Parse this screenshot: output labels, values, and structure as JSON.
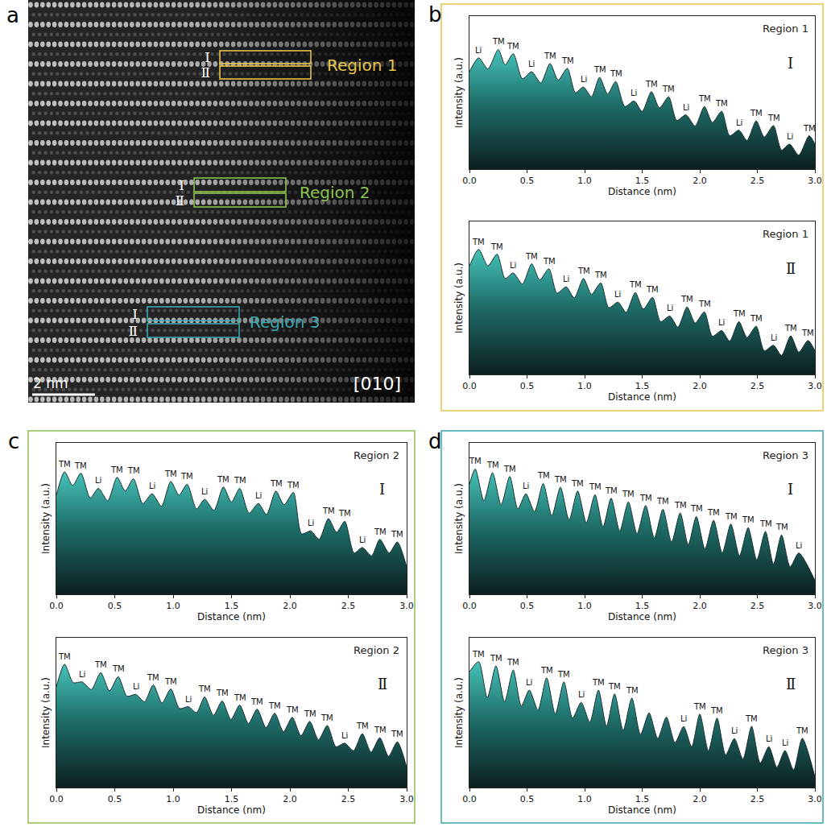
{
  "image_panel": {
    "letter": "a",
    "scale_bar": "2 nm",
    "zone_axis": "[010]",
    "regions": [
      {
        "name": "Region 1",
        "color": "#e6c34a",
        "rows": [
          "Ⅰ",
          "Ⅱ"
        ]
      },
      {
        "name": "Region 2",
        "color": "#8cc152",
        "rows": [
          "Ⅰ",
          "Ⅱ"
        ]
      },
      {
        "name": "Region 3",
        "color": "#3aa6b0",
        "rows": [
          "Ⅰ",
          "Ⅱ"
        ]
      }
    ]
  },
  "chart_data": [
    {
      "type": "area",
      "panel": "b",
      "title": "Region 1",
      "subtitle": "Ⅰ",
      "color": "#e6c34a",
      "xlabel": "Distance (nm)",
      "ylabel": "Intensity (a.u.)",
      "xlim": [
        0,
        3
      ],
      "ylim": [
        0,
        110
      ],
      "xticks": [
        {
          "value": 0,
          "label": "0.0"
        },
        0.5,
        {
          "value": 1,
          "label": "1.0"
        },
        1.5,
        {
          "value": 2,
          "label": "2.0"
        },
        2.5,
        {
          "value": 3,
          "label": "3.0"
        }
      ],
      "tick_labels": "x",
      "grid": false,
      "x": [
        0,
        0.08,
        0.16,
        0.25,
        0.31,
        0.38,
        0.46,
        0.54,
        0.62,
        0.7,
        0.77,
        0.85,
        0.92,
        0.99,
        1.06,
        1.13,
        1.2,
        1.27,
        1.35,
        1.43,
        1.5,
        1.58,
        1.65,
        1.73,
        1.8,
        1.88,
        1.96,
        2.04,
        2.11,
        2.19,
        2.26,
        2.34,
        2.41,
        2.49,
        2.56,
        2.64,
        2.71,
        2.78,
        2.86,
        2.95,
        3.0
      ],
      "values": [
        70,
        80,
        72,
        86,
        75,
        83,
        65,
        70,
        62,
        76,
        64,
        72.5,
        55,
        59,
        52,
        66,
        54,
        63,
        45,
        49,
        41.5,
        55.7,
        44,
        52,
        35,
        39,
        31,
        45,
        33.5,
        41.6,
        24,
        28,
        20.6,
        34.7,
        23,
        31.3,
        13.7,
        18,
        10,
        24,
        18
      ],
      "point_labels": [
        null,
        "Li",
        null,
        "TM",
        null,
        "TM",
        null,
        "Li",
        null,
        "TM",
        null,
        "TM",
        null,
        "Li",
        null,
        "TM",
        null,
        "TM",
        null,
        "Li",
        null,
        "TM",
        null,
        "TM",
        null,
        "Li",
        null,
        "TM",
        null,
        "TM",
        null,
        "Li",
        null,
        "TM",
        null,
        "TM",
        null,
        "Li",
        null,
        "TM",
        null
      ]
    },
    {
      "type": "area",
      "panel": "b",
      "title": "Region 1",
      "subtitle": "Ⅱ",
      "color": "#e6c34a",
      "xlabel": "Distance (nm)",
      "ylabel": "Intensity (a.u.)",
      "xlim": [
        0,
        3
      ],
      "ylim": [
        0,
        110
      ],
      "xticks": [
        {
          "value": 0,
          "label": "0.0"
        },
        0.5,
        {
          "value": 1,
          "label": "1.0"
        },
        1.5,
        {
          "value": 2,
          "label": "2.0"
        },
        2.5,
        {
          "value": 3,
          "label": "3.0"
        }
      ],
      "tick_labels": "x",
      "grid": false,
      "x": [
        0,
        0.08,
        0.16,
        0.24,
        0.31,
        0.38,
        0.46,
        0.54,
        0.61,
        0.69,
        0.76,
        0.84,
        0.91,
        0.99,
        1.06,
        1.14,
        1.21,
        1.29,
        1.36,
        1.44,
        1.51,
        1.59,
        1.66,
        1.74,
        1.81,
        1.89,
        1.96,
        2.04,
        2.11,
        2.19,
        2.26,
        2.34,
        2.41,
        2.49,
        2.56,
        2.64,
        2.71,
        2.79,
        2.86,
        2.94,
        3.0
      ],
      "values": [
        78,
        90,
        78,
        86.5,
        69,
        73,
        65,
        79.6,
        68,
        76,
        58.5,
        63,
        55,
        69,
        57.6,
        65.8,
        48,
        52,
        44.7,
        58.9,
        47,
        55.4,
        38,
        42,
        34,
        48.5,
        37,
        45,
        27.5,
        31.6,
        24,
        38,
        26.6,
        34.7,
        17,
        21,
        13.7,
        27.8,
        16,
        24.4,
        17
      ],
      "point_labels": [
        null,
        "TM",
        null,
        "TM",
        null,
        "Li",
        null,
        "TM",
        null,
        "TM",
        null,
        "Li",
        null,
        "TM",
        null,
        "TM",
        null,
        "Li",
        null,
        "TM",
        null,
        "TM",
        null,
        "Li",
        null,
        "TM",
        null,
        "TM",
        null,
        "Li",
        null,
        "TM",
        null,
        "TM",
        null,
        "Li",
        null,
        "TM",
        null,
        "TM",
        null
      ]
    },
    {
      "type": "area",
      "panel": "c",
      "title": "Region 2",
      "subtitle": "Ⅰ",
      "color": "#8cc152",
      "xlabel": "Distance (nm)",
      "ylabel": "Intensity (a.u.)",
      "xlim": [
        0,
        3
      ],
      "ylim": [
        0,
        110
      ],
      "xticks": [
        {
          "value": 0,
          "label": "0.0"
        },
        0.5,
        {
          "value": 1,
          "label": "1.0"
        },
        1.5,
        {
          "value": 2,
          "label": "2.0"
        },
        2.5,
        {
          "value": 3,
          "label": "3.0"
        }
      ],
      "tick_labels": "x",
      "grid": false,
      "x": [
        0,
        0.07,
        0.14,
        0.21,
        0.29,
        0.36,
        0.44,
        0.52,
        0.59,
        0.66,
        0.74,
        0.82,
        0.9,
        0.98,
        1.05,
        1.12,
        1.2,
        1.27,
        1.35,
        1.43,
        1.5,
        1.57,
        1.65,
        1.73,
        1.8,
        1.88,
        1.95,
        2.03,
        2.1,
        2.18,
        2.25,
        2.33,
        2.4,
        2.47,
        2.55,
        2.62,
        2.7,
        2.77,
        2.85,
        2.92,
        3.0
      ],
      "values": [
        72,
        89,
        79,
        88,
        70,
        77,
        68,
        85,
        75,
        84,
        66,
        73,
        64,
        82,
        72,
        80,
        62,
        69,
        61,
        78,
        67,
        77,
        59,
        66,
        58,
        75,
        65,
        74,
        44,
        46,
        40,
        55,
        45,
        53,
        30,
        34,
        28,
        40,
        30,
        38,
        20
      ],
      "point_labels": [
        null,
        "TM",
        null,
        "TM",
        null,
        "Li",
        null,
        "TM",
        null,
        "TM",
        null,
        "Li",
        null,
        "TM",
        null,
        "TM",
        null,
        "Li",
        null,
        "TM",
        null,
        "TM",
        null,
        "Li",
        null,
        "TM",
        null,
        "TM",
        null,
        "Li",
        null,
        "TM",
        null,
        "TM",
        null,
        "Li",
        null,
        "TM",
        null,
        "TM",
        null
      ]
    },
    {
      "type": "area",
      "panel": "c",
      "title": "Region 2",
      "subtitle": "Ⅱ",
      "color": "#8cc152",
      "xlabel": "Distance (nm)",
      "ylabel": "Intensity (a.u.)",
      "xlim": [
        0,
        3
      ],
      "ylim": [
        0,
        110
      ],
      "xticks": [
        {
          "value": 0,
          "label": "0.0"
        },
        0.5,
        {
          "value": 1,
          "label": "1.0"
        },
        1.5,
        {
          "value": 2,
          "label": "2.0"
        },
        2.5,
        {
          "value": 3,
          "label": "3.0"
        }
      ],
      "tick_labels": "x",
      "grid": false,
      "x": [
        0,
        0.07,
        0.145,
        0.22,
        0.3,
        0.38,
        0.455,
        0.53,
        0.605,
        0.68,
        0.755,
        0.83,
        0.905,
        0.98,
        1.055,
        1.13,
        1.2,
        1.27,
        1.345,
        1.42,
        1.495,
        1.57,
        1.645,
        1.72,
        1.795,
        1.87,
        1.945,
        2.02,
        2.095,
        2.17,
        2.245,
        2.32,
        2.395,
        2.47,
        2.545,
        2.62,
        2.695,
        2.77,
        2.845,
        2.92,
        3.0
      ],
      "values": [
        74,
        90.6,
        77,
        77.6,
        72,
        84.4,
        71,
        81.4,
        67,
        68.4,
        63,
        75.4,
        62,
        72.4,
        58,
        59.4,
        55,
        66.6,
        53,
        63.6,
        50,
        60.6,
        47,
        57.6,
        44,
        54.6,
        41,
        51.6,
        38,
        48.6,
        35,
        45.6,
        30,
        32.6,
        27,
        39.6,
        26,
        36.6,
        23,
        33.6,
        15
      ],
      "point_labels": [
        null,
        "TM",
        null,
        "Li",
        null,
        "TM",
        null,
        "TM",
        null,
        "Li",
        null,
        "TM",
        null,
        "TM",
        null,
        "Li",
        null,
        "TM",
        null,
        "TM",
        null,
        "TM",
        null,
        "TM",
        null,
        "TM",
        null,
        "TM",
        null,
        "TM",
        null,
        "TM",
        null,
        "Li",
        null,
        "TM",
        null,
        "TM",
        null,
        "TM",
        null
      ]
    },
    {
      "type": "area",
      "panel": "d",
      "title": "Region 3",
      "subtitle": "Ⅰ",
      "color": "#3aa6b0",
      "xlabel": "Distance (nm)",
      "ylabel": "Intensity (a.u.)",
      "xlim": [
        0,
        3
      ],
      "ylim": [
        0,
        110
      ],
      "xticks": [
        {
          "value": 0,
          "label": "0.0"
        },
        0.5,
        {
          "value": 1,
          "label": "1.0"
        },
        1.5,
        {
          "value": 2,
          "label": "2.0"
        },
        2.5,
        {
          "value": 3,
          "label": "3.0"
        }
      ],
      "tick_labels": "x",
      "grid": false,
      "x": [
        0,
        0.05,
        0.125,
        0.2,
        0.275,
        0.35,
        0.42,
        0.49,
        0.565,
        0.64,
        0.715,
        0.79,
        0.865,
        0.94,
        1.015,
        1.09,
        1.16,
        1.23,
        1.305,
        1.38,
        1.455,
        1.53,
        1.605,
        1.68,
        1.755,
        1.83,
        1.9,
        1.97,
        2.045,
        2.12,
        2.195,
        2.27,
        2.345,
        2.42,
        2.495,
        2.57,
        2.64,
        2.71,
        2.785,
        2.86,
        3.0
      ],
      "values": [
        80,
        91.1,
        68,
        88.4,
        65,
        85.7,
        62,
        73,
        60,
        80.5,
        57,
        77.8,
        54,
        75.1,
        52,
        72.4,
        49,
        69.9,
        46,
        67.2,
        44,
        64.5,
        41,
        61.8,
        38,
        59.1,
        36,
        56.5,
        33,
        53.8,
        30,
        51.1,
        28,
        48.4,
        25,
        45.7,
        22,
        43.2,
        20,
        30,
        10
      ],
      "point_labels": [
        null,
        "TM",
        null,
        "TM",
        null,
        "TM",
        null,
        "Li",
        null,
        "TM",
        null,
        "TM",
        null,
        "TM",
        null,
        "TM",
        null,
        "TM",
        null,
        "TM",
        null,
        "TM",
        null,
        "TM",
        null,
        "TM",
        null,
        "TM",
        null,
        "TM",
        null,
        "TM",
        null,
        "TM",
        null,
        "TM",
        null,
        "TM",
        null,
        "Li",
        null
      ]
    },
    {
      "type": "area",
      "panel": "d",
      "title": "Region 3",
      "subtitle": "Ⅱ",
      "color": "#3aa6b0",
      "xlabel": "Distance (nm)",
      "ylabel": "Intensity (a.u.)",
      "xlim": [
        0,
        3
      ],
      "ylim": [
        0,
        110
      ],
      "xticks": [
        {
          "value": 0,
          "label": "0.0"
        },
        0.5,
        {
          "value": 1,
          "label": "1.0"
        },
        1.5,
        {
          "value": 2,
          "label": "2.0"
        },
        2.5,
        {
          "value": 3,
          "label": "3.0"
        }
      ],
      "tick_labels": "x",
      "grid": false,
      "x": [
        0,
        0.08,
        0.155,
        0.23,
        0.305,
        0.38,
        0.45,
        0.52,
        0.595,
        0.67,
        0.745,
        0.82,
        0.895,
        0.97,
        1.045,
        1.12,
        1.19,
        1.26,
        1.335,
        1.41,
        1.485,
        1.56,
        1.635,
        1.71,
        1.785,
        1.86,
        1.93,
        2.0,
        2.075,
        2.15,
        2.225,
        2.3,
        2.375,
        2.45,
        2.525,
        2.6,
        2.67,
        2.74,
        2.815,
        2.89,
        3.0
      ],
      "values": [
        85,
        92.4,
        66,
        89.4,
        63,
        86.4,
        60,
        71.6,
        57,
        80.6,
        54,
        77.6,
        51,
        62.6,
        48,
        71.6,
        45,
        68.8,
        42,
        65.8,
        39,
        54.8,
        36,
        51.8,
        33,
        44.8,
        30,
        54,
        27,
        51,
        24,
        36,
        21,
        45,
        18,
        30,
        15,
        27.2,
        13,
        36.2,
        8
      ],
      "point_labels": [
        null,
        "TM",
        null,
        "TM",
        null,
        "TM",
        null,
        "Li",
        null,
        "TM",
        null,
        "TM",
        null,
        "Li",
        null,
        "TM",
        null,
        "TM",
        null,
        "TM",
        null,
        null,
        null,
        null,
        null,
        "Li",
        null,
        "TM",
        null,
        "TM",
        null,
        "Li",
        null,
        "TM",
        null,
        "Li",
        null,
        "Li",
        null,
        "TM",
        null
      ]
    }
  ]
}
